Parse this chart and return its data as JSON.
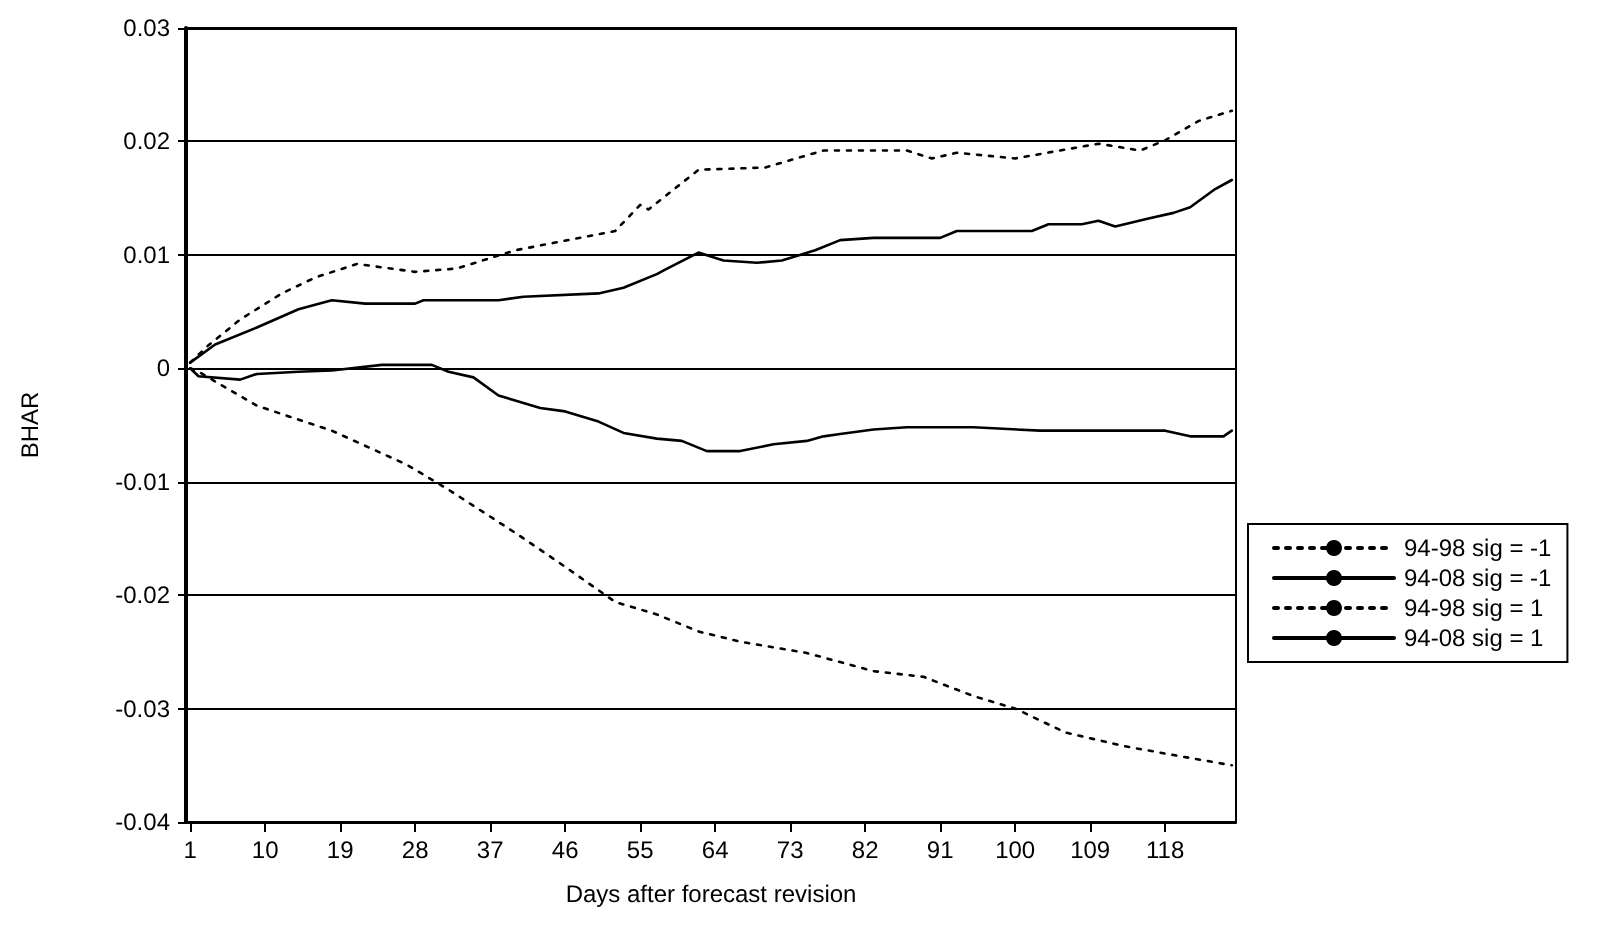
{
  "chart_data": {
    "type": "line",
    "xlabel": "Days after forecast revision",
    "ylabel": "BHAR",
    "xlim": [
      0.5,
      126.5
    ],
    "xticks": [
      1,
      10,
      19,
      28,
      37,
      46,
      55,
      64,
      73,
      82,
      91,
      100,
      109,
      118
    ],
    "ylim": [
      -0.04,
      0.03
    ],
    "yticks": [
      -0.04,
      -0.03,
      -0.02,
      -0.01,
      0,
      0.01,
      0.02,
      0.03
    ],
    "grid": "y",
    "legend": "right",
    "marker": "none",
    "series": [
      {
        "name": "94-98 sig = -1",
        "color": "#000000",
        "line_style": "dotted",
        "x": [
          1,
          2,
          9,
          18,
          27,
          32,
          40,
          46,
          52,
          57,
          62,
          67,
          75,
          83,
          89,
          95,
          100,
          106,
          113,
          119,
          126
        ],
        "values": [
          0,
          -0.0003,
          -0.0033,
          -0.0055,
          -0.0085,
          -0.0107,
          -0.0145,
          -0.0175,
          -0.0206,
          -0.0217,
          -0.0232,
          -0.0241,
          -0.0251,
          -0.0267,
          -0.0272,
          -0.0289,
          -0.03,
          -0.0321,
          -0.0333,
          -0.0341,
          -0.035
        ]
      },
      {
        "name": "94-08 sig = -1",
        "color": "#000000",
        "line_style": "solid",
        "x": [
          1,
          2,
          7,
          9,
          14,
          18,
          24,
          30,
          32,
          35,
          38,
          43,
          46,
          50,
          53,
          57,
          60,
          63,
          67,
          71,
          75,
          77,
          79,
          83,
          87,
          95,
          103,
          111,
          118,
          121,
          125,
          126
        ],
        "values": [
          0,
          -0.0007,
          -0.001,
          -0.0005,
          -0.0003,
          -0.0002,
          0.0003,
          0.0003,
          -0.0003,
          -0.0008,
          -0.0024,
          -0.0035,
          -0.0038,
          -0.0047,
          -0.0057,
          -0.0062,
          -0.0064,
          -0.0073,
          -0.0073,
          -0.0067,
          -0.0064,
          -0.006,
          -0.0058,
          -0.0054,
          -0.0052,
          -0.0052,
          -0.0055,
          -0.0055,
          -0.0055,
          -0.006,
          -0.006,
          -0.0055
        ]
      },
      {
        "name": "94-98 sig = 1",
        "color": "#000000",
        "line_style": "dotted",
        "x": [
          1,
          3,
          7,
          12,
          16,
          21,
          28,
          33,
          40,
          52,
          55,
          56,
          62,
          70,
          77,
          87,
          90,
          93,
          100,
          110,
          115,
          118,
          122,
          126
        ],
        "values": [
          0.0005,
          0.0019,
          0.0043,
          0.0066,
          0.008,
          0.0092,
          0.0085,
          0.0088,
          0.0104,
          0.0121,
          0.0144,
          0.014,
          0.0175,
          0.0177,
          0.0192,
          0.0192,
          0.0185,
          0.019,
          0.0185,
          0.0198,
          0.0192,
          0.0201,
          0.0218,
          0.0227
        ]
      },
      {
        "name": "94-08 sig = 1",
        "color": "#000000",
        "line_style": "solid",
        "x": [
          1,
          4,
          9,
          14,
          18,
          22,
          28,
          29,
          38,
          41,
          50,
          53,
          57,
          58,
          62,
          65,
          69,
          72,
          76,
          79,
          83,
          91,
          93,
          102,
          104,
          108,
          110,
          112,
          116,
          119,
          121,
          124,
          126
        ],
        "values": [
          0.0005,
          0.0021,
          0.0036,
          0.0052,
          0.006,
          0.0057,
          0.0057,
          0.006,
          0.006,
          0.0063,
          0.0066,
          0.0071,
          0.0083,
          0.0087,
          0.0102,
          0.0095,
          0.0093,
          0.0095,
          0.0104,
          0.0113,
          0.0115,
          0.0115,
          0.0121,
          0.0121,
          0.0127,
          0.0127,
          0.013,
          0.0125,
          0.0132,
          0.0137,
          0.0142,
          0.0158,
          0.0166
        ]
      }
    ]
  }
}
